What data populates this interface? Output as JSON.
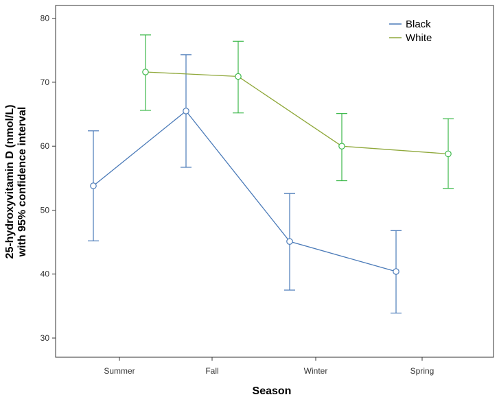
{
  "chart_data": {
    "type": "line",
    "title": "",
    "xlabel": "Season",
    "ylabel_line1": "25-hydroxyvitamin D (nmol/L)",
    "ylabel_line2": "with 95% confidence interval",
    "categories": [
      "Summer",
      "Fall",
      "Winter",
      "Spring"
    ],
    "ylim": [
      27,
      82
    ],
    "yticks": [
      30,
      40,
      50,
      60,
      70,
      80
    ],
    "grid": false,
    "legend_position": "top-right",
    "series": [
      {
        "name": "Black",
        "color": "#4a7ab8",
        "offset": "left",
        "values": [
          53.8,
          65.5,
          45.1,
          40.4
        ],
        "lower": [
          45.2,
          56.7,
          37.5,
          33.9
        ],
        "upper": [
          62.4,
          74.3,
          52.6,
          46.8
        ]
      },
      {
        "name": "White",
        "color": "#8fa83a",
        "err_color": "#3cb84a",
        "offset": "right",
        "values": [
          71.6,
          70.9,
          60.0,
          58.8
        ],
        "lower": [
          65.6,
          65.2,
          54.6,
          53.4
        ],
        "upper": [
          77.4,
          76.4,
          65.1,
          64.3
        ]
      }
    ]
  }
}
